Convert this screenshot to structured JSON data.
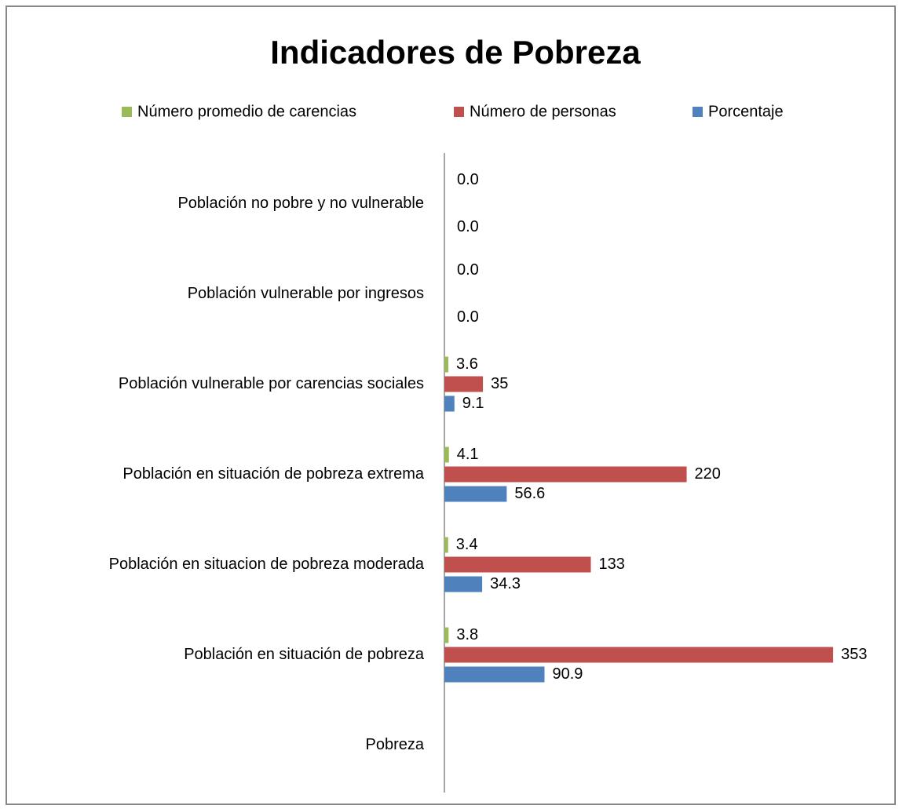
{
  "chart_data": {
    "type": "bar",
    "orientation": "horizontal",
    "title": "Indicadores de Pobreza",
    "categories": [
      "Población no pobre y no vulnerable",
      "Población vulnerable por ingresos",
      "Población vulnerable por carencias sociales",
      "Población en situación de pobreza extrema",
      "Población en situacion de pobreza moderada",
      "Población en situación de pobreza",
      "Pobreza"
    ],
    "series": [
      {
        "name": "Número promedio de carencias",
        "color": "#9bbb59",
        "values": [
          0,
          0,
          3.6,
          4.1,
          3.4,
          3.8,
          null
        ],
        "value_labels": [
          "0.0",
          "0.0",
          "3.6",
          "4.1",
          "3.4",
          "3.8",
          null
        ]
      },
      {
        "name": "Número de personas",
        "color": "#c0504d",
        "values": [
          null,
          null,
          35,
          220,
          133,
          353,
          null
        ]
      },
      {
        "name": "Porcentaje",
        "color": "#4f81bd",
        "values": [
          0,
          0,
          9.1,
          56.6,
          34.3,
          90.9,
          null
        ],
        "value_labels": [
          "0.0",
          "0.0",
          "9.1",
          "56.6",
          "34.3",
          "90.9",
          null
        ]
      }
    ],
    "xlim": [
      0,
      400
    ],
    "legend": "top"
  }
}
